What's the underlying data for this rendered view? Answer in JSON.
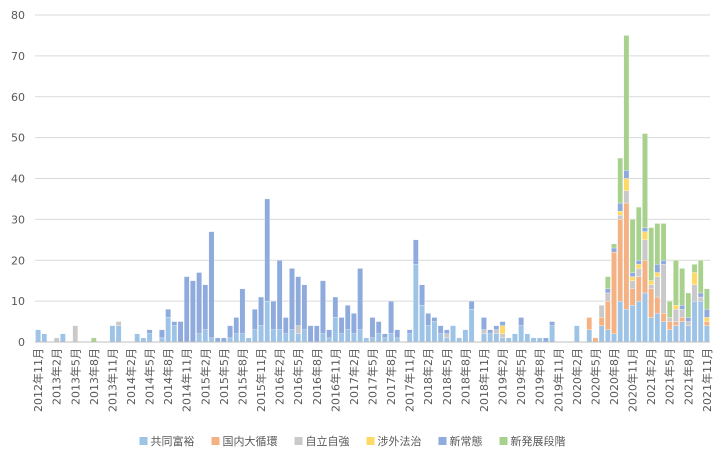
{
  "chart_data": {
    "type": "bar",
    "stacked": true,
    "categories": [
      "2012年11月",
      null,
      null,
      "2013年2月",
      null,
      null,
      "2013年5月",
      null,
      null,
      "2013年8月",
      null,
      null,
      "2013年11月",
      null,
      null,
      "2014年2月",
      null,
      null,
      "2014年5月",
      null,
      null,
      "2014年8月",
      null,
      null,
      "2014年11月",
      null,
      null,
      "2015年2月",
      null,
      null,
      "2015年5月",
      null,
      null,
      "2015年8月",
      null,
      null,
      "2015年11月",
      null,
      null,
      "2016年2月",
      null,
      null,
      "2016年5月",
      null,
      null,
      "2016年8月",
      null,
      null,
      "2016年11月",
      null,
      null,
      "2017年2月",
      null,
      null,
      "2017年5月",
      null,
      null,
      "2017年8月",
      null,
      null,
      "2017年11月",
      null,
      null,
      "2018年2月",
      null,
      null,
      "2018年5月",
      null,
      null,
      "2018年8月",
      null,
      null,
      "2018年11月",
      null,
      null,
      "2019年2月",
      null,
      null,
      "2019年5月",
      null,
      null,
      "2019年8月",
      null,
      null,
      "2019年11月",
      null,
      null,
      "2020年2月",
      null,
      null,
      "2020年5月",
      null,
      null,
      "2020年8月",
      null,
      null,
      "2020年11月",
      null,
      null,
      "2021年2月",
      null,
      null,
      "2021年5月",
      null,
      null,
      "2021年8月",
      null,
      null,
      "2021年11月"
    ],
    "series": [
      {
        "name": "共同富裕",
        "color": "#9dc3e6",
        "values": [
          3,
          2,
          0,
          0,
          2,
          0,
          0,
          0,
          0,
          0,
          0,
          0,
          4,
          4,
          0,
          0,
          2,
          1,
          2,
          0,
          1,
          6,
          4,
          0,
          0,
          0,
          2,
          3,
          1,
          0,
          0,
          1,
          2,
          2,
          1,
          3,
          4,
          10,
          3,
          3,
          2,
          3,
          2,
          3,
          0,
          0,
          2,
          1,
          6,
          2,
          3,
          2,
          3,
          1,
          1,
          2,
          1,
          2,
          1,
          0,
          2,
          19,
          9,
          4,
          5,
          2,
          1,
          4,
          1,
          3,
          8,
          0,
          2,
          2,
          2,
          1,
          1,
          2,
          4,
          2,
          1,
          1,
          0,
          4,
          0,
          0,
          0,
          4,
          0,
          3,
          0,
          4,
          3,
          2,
          10,
          8,
          9,
          10,
          12,
          6,
          7,
          5,
          3,
          4,
          5,
          4,
          10,
          10,
          4
        ]
      },
      {
        "name": "国内大循環",
        "color": "#f4b183",
        "values": [
          0,
          0,
          0,
          0,
          0,
          0,
          0,
          0,
          0,
          0,
          0,
          0,
          0,
          0,
          0,
          0,
          0,
          0,
          0,
          0,
          0,
          0,
          0,
          0,
          0,
          0,
          0,
          0,
          0,
          0,
          0,
          0,
          0,
          0,
          0,
          0,
          0,
          0,
          0,
          0,
          0,
          0,
          0,
          0,
          0,
          0,
          0,
          0,
          0,
          0,
          0,
          0,
          0,
          0,
          0,
          0,
          0,
          0,
          0,
          0,
          0,
          0,
          0,
          0,
          0,
          0,
          0,
          0,
          0,
          0,
          0,
          0,
          0,
          0,
          0,
          0,
          0,
          0,
          0,
          0,
          0,
          0,
          0,
          0,
          0,
          0,
          0,
          0,
          0,
          3,
          1,
          2,
          7,
          20,
          20,
          26,
          4,
          6,
          8,
          7,
          4,
          2,
          2,
          1,
          1,
          0,
          0,
          0,
          1
        ]
      },
      {
        "name": "自立自強",
        "color": "#c9c9c9",
        "values": [
          0,
          0,
          0,
          1,
          0,
          0,
          4,
          0,
          0,
          0,
          0,
          0,
          0,
          1,
          0,
          0,
          0,
          0,
          0,
          0,
          0,
          0,
          0,
          0,
          0,
          0,
          0,
          0,
          0,
          0,
          0,
          0,
          0,
          0,
          0,
          0,
          0,
          0,
          0,
          0,
          0,
          0,
          2,
          0,
          0,
          0,
          0,
          0,
          0,
          0,
          0,
          0,
          0,
          0,
          0,
          0,
          0,
          0,
          0,
          0,
          0,
          0,
          0,
          0,
          0,
          0,
          1,
          0,
          0,
          0,
          0,
          0,
          1,
          0,
          1,
          1,
          0,
          0,
          0,
          0,
          0,
          0,
          0,
          0,
          0,
          0,
          0,
          0,
          0,
          0,
          0,
          3,
          2,
          0,
          1,
          3,
          2,
          2,
          5,
          1,
          5,
          12,
          1,
          3,
          2,
          1,
          4,
          1,
          0
        ]
      },
      {
        "name": "涉外法治",
        "color": "#ffd966",
        "values": [
          0,
          0,
          0,
          0,
          0,
          0,
          0,
          0,
          0,
          0,
          0,
          0,
          0,
          0,
          0,
          0,
          0,
          0,
          0,
          0,
          0,
          0,
          0,
          0,
          0,
          0,
          0,
          0,
          0,
          0,
          0,
          0,
          0,
          0,
          0,
          0,
          0,
          0,
          0,
          0,
          0,
          0,
          0,
          0,
          0,
          0,
          0,
          0,
          0,
          0,
          0,
          0,
          0,
          0,
          0,
          0,
          0,
          0,
          0,
          0,
          0,
          0,
          0,
          0,
          0,
          0,
          0,
          0,
          0,
          0,
          0,
          0,
          0,
          0,
          0,
          2,
          0,
          0,
          0,
          0,
          0,
          0,
          0,
          0,
          0,
          0,
          0,
          0,
          0,
          0,
          0,
          0,
          0,
          0,
          1,
          3,
          1,
          1,
          2,
          1,
          1,
          0,
          0,
          1,
          0,
          0,
          3,
          0,
          1
        ]
      },
      {
        "name": "新常態",
        "color": "#8faadc",
        "values": [
          0,
          0,
          0,
          0,
          0,
          0,
          0,
          0,
          0,
          0,
          0,
          0,
          0,
          0,
          0,
          0,
          0,
          0,
          1,
          0,
          2,
          2,
          1,
          5,
          16,
          15,
          15,
          11,
          26,
          1,
          1,
          3,
          4,
          11,
          0,
          5,
          7,
          25,
          7,
          17,
          4,
          15,
          12,
          11,
          4,
          4,
          13,
          2,
          5,
          4,
          6,
          5,
          15,
          0,
          5,
          3,
          1,
          8,
          2,
          0,
          1,
          6,
          5,
          3,
          1,
          2,
          1,
          0,
          0,
          0,
          2,
          0,
          3,
          1,
          1,
          1,
          0,
          0,
          2,
          0,
          0,
          0,
          1,
          1,
          0,
          0,
          0,
          0,
          0,
          0,
          0,
          0,
          1,
          1,
          2,
          2,
          1,
          1,
          1,
          0,
          2,
          1,
          0,
          0,
          1,
          1,
          0,
          1,
          2
        ]
      },
      {
        "name": "新発展段階",
        "color": "#a9d18e",
        "values": [
          0,
          0,
          0,
          0,
          0,
          0,
          0,
          0,
          0,
          1,
          0,
          0,
          0,
          0,
          0,
          0,
          0,
          0,
          0,
          0,
          0,
          0,
          0,
          0,
          0,
          0,
          0,
          0,
          0,
          0,
          0,
          0,
          0,
          0,
          0,
          0,
          0,
          0,
          0,
          0,
          0,
          0,
          0,
          0,
          0,
          0,
          0,
          0,
          0,
          0,
          0,
          0,
          0,
          0,
          0,
          0,
          0,
          0,
          0,
          0,
          0,
          0,
          0,
          0,
          0,
          0,
          0,
          0,
          0,
          0,
          0,
          0,
          0,
          0,
          0,
          0,
          0,
          0,
          0,
          0,
          0,
          0,
          0,
          0,
          0,
          0,
          0,
          0,
          0,
          0,
          0,
          0,
          3,
          1,
          11,
          33,
          13,
          13,
          23,
          13,
          10,
          9,
          4,
          11,
          9,
          6,
          2,
          8,
          5
        ]
      }
    ],
    "ylim": [
      0,
      80
    ],
    "yticks": [
      0,
      10,
      20,
      30,
      40,
      50,
      60,
      70,
      80
    ],
    "grid": true,
    "legend": "bottom"
  }
}
